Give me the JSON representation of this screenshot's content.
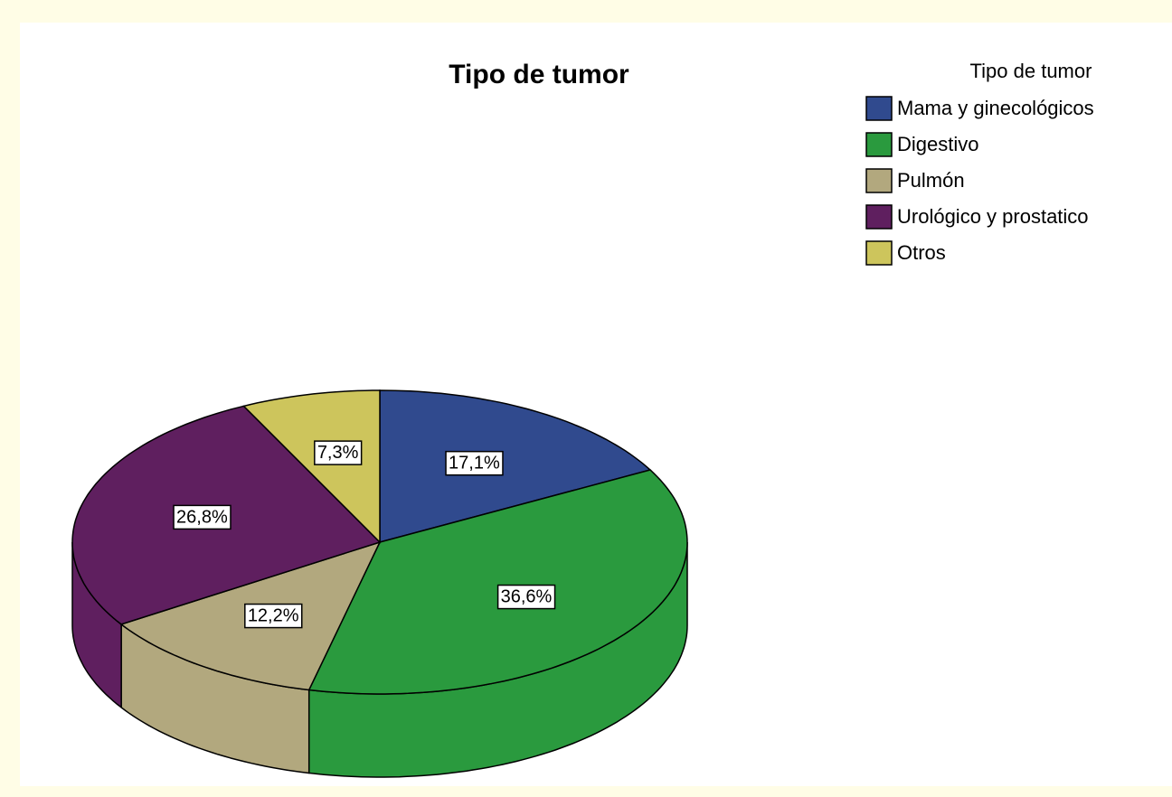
{
  "chart_data": {
    "type": "pie",
    "title": "Tipo de tumor",
    "legend_title": "Tipo de tumor",
    "categories": [
      "Mama y ginecológicos",
      "Digestivo",
      "Pulmón",
      "Urológico y prostatico",
      "Otros"
    ],
    "values": [
      17.1,
      36.6,
      12.2,
      26.8,
      7.3
    ],
    "value_labels": [
      "17,1%",
      "36,6%",
      "12,2%",
      "26,8%",
      "7,3%"
    ],
    "colors": [
      "#304a8e",
      "#2a9a3e",
      "#b2a87e",
      "#5f1f5f",
      "#cdc55c"
    ],
    "legend": "top-right"
  }
}
